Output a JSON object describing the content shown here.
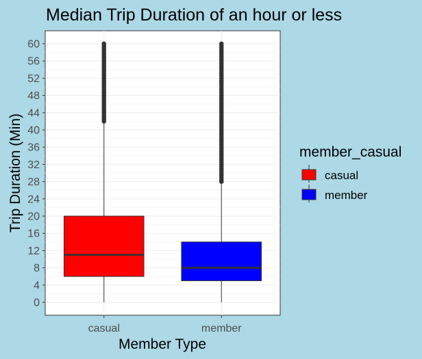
{
  "chart_data": {
    "type": "boxplot",
    "title": "Median Trip Duration of an hour or less",
    "xlabel": "Member Type",
    "ylabel": "Trip Duration (Min)",
    "ylim": [
      -3,
      63
    ],
    "yticks": [
      0,
      4,
      8,
      12,
      16,
      20,
      24,
      28,
      32,
      36,
      40,
      44,
      48,
      52,
      56,
      60
    ],
    "ytick_labels": [
      "0",
      "4",
      "8",
      "12",
      "16",
      "20",
      "24",
      "28",
      "32",
      "36",
      "40",
      "44",
      "48",
      "52",
      "56",
      "60"
    ],
    "categories": [
      "casual",
      "member"
    ],
    "grid": true,
    "legend": {
      "title": "member_casual",
      "position": "right"
    },
    "series": [
      {
        "name": "casual",
        "color": "#FF0000",
        "whisker_low": 0,
        "q1": 6,
        "median": 11,
        "q3": 20,
        "whisker_high": 41.5,
        "outliers_from": 42,
        "outliers_to": 60
      },
      {
        "name": "member",
        "color": "#0000FF",
        "whisker_low": 0,
        "q1": 5,
        "median": 8,
        "q3": 14,
        "whisker_high": 27.5,
        "outliers_from": 28,
        "outliers_to": 60
      }
    ]
  }
}
